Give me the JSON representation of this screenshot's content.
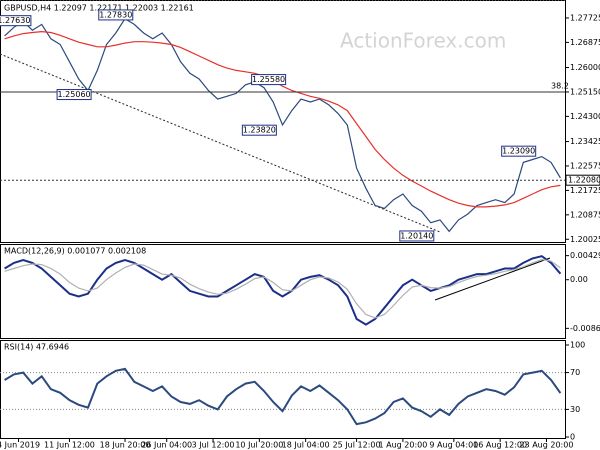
{
  "chart_data": {
    "type": "line",
    "title": "GBPUSD,H4 1.22097 1.22171 1.22003 1.22161",
    "watermark": "ActionForex.com",
    "xlim": [
      0,
      61
    ],
    "xticks": [
      {
        "value": 2,
        "label": "4 Jun 2019"
      },
      {
        "value": 7.5,
        "label": "11 Jun 12:00"
      },
      {
        "value": 13.5,
        "label": "18 Jun 20:00"
      },
      {
        "value": 18,
        "label": "26 Jun 04:00"
      },
      {
        "value": 23,
        "label": "3 Jul 12:00"
      },
      {
        "value": 28,
        "label": "10 Jul 20:00"
      },
      {
        "value": 33,
        "label": "18 Jul 04:00"
      },
      {
        "value": 38.5,
        "label": "25 Jul 12:00"
      },
      {
        "value": 43.5,
        "label": "1 Aug 20:00"
      },
      {
        "value": 49,
        "label": "9 Aug 04:00"
      },
      {
        "value": 54,
        "label": "16 Aug 12:00"
      },
      {
        "value": 59,
        "label": "23 Aug 20:00"
      }
    ],
    "ylim": [
      1.1993,
      1.2828
    ],
    "yticks": [
      1.27725,
      1.26875,
      {
        "value": 1.26,
        "label": "1.26000"
      },
      {
        "value": 1.2515,
        "label": "1.25150"
      },
      {
        "value": 1.243,
        "label": "1.24300"
      },
      1.23425,
      1.22575,
      1.21725,
      1.20875,
      1.20025
    ],
    "series": [
      {
        "name": "GBPUSD",
        "color": "#2b4a7e",
        "values": [
          1.271,
          1.274,
          1.276,
          1.273,
          1.275,
          1.27,
          1.268,
          1.262,
          1.256,
          1.252,
          1.259,
          1.268,
          1.272,
          1.277,
          1.275,
          1.272,
          1.27,
          1.272,
          1.268,
          1.262,
          1.258,
          1.256,
          1.252,
          1.249,
          1.25,
          1.251,
          1.254,
          1.255,
          1.253,
          1.248,
          1.24,
          1.245,
          1.249,
          1.248,
          1.249,
          1.247,
          1.244,
          1.24,
          1.225,
          1.218,
          1.212,
          1.211,
          1.214,
          1.216,
          1.212,
          1.21,
          1.206,
          1.207,
          1.203,
          1.207,
          1.209,
          1.212,
          1.213,
          1.214,
          1.213,
          1.216,
          1.227,
          1.228,
          1.229,
          1.227,
          1.2216
        ]
      },
      {
        "name": "MA",
        "color": "#e8302a",
        "values": [
          1.27,
          1.271,
          1.2718,
          1.2722,
          1.2725,
          1.2722,
          1.2712,
          1.27,
          1.2688,
          1.268,
          1.2672,
          1.2672,
          1.2678,
          1.2685,
          1.269,
          1.269,
          1.2688,
          1.2685,
          1.268,
          1.267,
          1.2655,
          1.264,
          1.2625,
          1.261,
          1.2598,
          1.259,
          1.2585,
          1.258,
          1.257,
          1.2555,
          1.2535,
          1.252,
          1.251,
          1.25,
          1.2493,
          1.2483,
          1.247,
          1.245,
          1.2405,
          1.236,
          1.2315,
          1.228,
          1.225,
          1.2225,
          1.2205,
          1.2188,
          1.217,
          1.2155,
          1.214,
          1.2128,
          1.212,
          1.2115,
          1.2115,
          1.2118,
          1.2122,
          1.213,
          1.2145,
          1.216,
          1.2175,
          1.2185,
          1.219
        ]
      }
    ],
    "levels": [
      {
        "value": 1.2515,
        "label": "38.2"
      },
      {
        "value": 1.2208,
        "label": "1.22080"
      }
    ],
    "annotations": [
      {
        "x": 1.5,
        "value": 1.2763,
        "label": "1.27630"
      },
      {
        "x": 12.5,
        "value": 1.2783,
        "label": "1.27830"
      },
      {
        "x": 8,
        "value": 1.2506,
        "label": "1.25060"
      },
      {
        "x": 29,
        "value": 1.2558,
        "label": "1.25580"
      },
      {
        "x": 28,
        "value": 1.2382,
        "label": "1.23820"
      },
      {
        "x": 56,
        "value": 1.2309,
        "label": "1.23090"
      },
      {
        "x": 45,
        "value": 1.2014,
        "label": "1.20140"
      }
    ],
    "macd": {
      "title": "MACD(12,26,9) 0.001077 0.002108",
      "ylim": [
        -0.0095,
        0.0053
      ],
      "yticks": [
        0.004293,
        {
          "value": 0,
          "label": "0.00"
        },
        -0.00867
      ],
      "series": [
        {
          "name": "MACD",
          "color": "#1a2f8a",
          "values": [
            0.002,
            0.003,
            0.0035,
            0.003,
            0.002,
            0.0005,
            -0.001,
            -0.0025,
            -0.003,
            -0.0025,
            0,
            0.002,
            0.003,
            0.0035,
            0.003,
            0.002,
            0.001,
            0,
            0.001,
            -0.0005,
            -0.002,
            -0.0025,
            -0.003,
            -0.003,
            -0.002,
            -0.001,
            0,
            0.001,
            0.0005,
            -0.002,
            -0.003,
            -0.002,
            0,
            0.0005,
            0.0008,
            0,
            -0.001,
            -0.003,
            -0.007,
            -0.008,
            -0.007,
            -0.005,
            -0.003,
            -0.001,
            0,
            -0.001,
            -0.002,
            -0.0015,
            -0.001,
            0,
            0.0005,
            0.001,
            0.001,
            0.0015,
            0.002,
            0.002,
            0.003,
            0.0038,
            0.0042,
            0.003,
            0.001077
          ]
        },
        {
          "name": "Signal",
          "color": "#b0b0b0",
          "values": [
            0.0015,
            0.002,
            0.0025,
            0.0028,
            0.0027,
            0.002,
            0.001,
            -0.0005,
            -0.0015,
            -0.002,
            -0.0015,
            0,
            0.0012,
            0.0022,
            0.0028,
            0.0026,
            0.0018,
            0.001,
            0.0008,
            0.0003,
            -0.0008,
            -0.0016,
            -0.0022,
            -0.0026,
            -0.0024,
            -0.0017,
            -0.0008,
            0.0002,
            0.0005,
            -0.0005,
            -0.0018,
            -0.002,
            -0.001,
            0,
            0.0005,
            0.0003,
            -0.0004,
            -0.0017,
            -0.0043,
            -0.0062,
            -0.0068,
            -0.0062,
            -0.0046,
            -0.0028,
            -0.0013,
            -0.001,
            -0.0014,
            -0.0015,
            -0.0012,
            -0.0005,
            0.0001,
            0.0006,
            0.0008,
            0.0011,
            0.0015,
            0.0018,
            0.0023,
            0.003,
            0.0036,
            0.0033,
            0.002108
          ]
        }
      ]
    },
    "rsi": {
      "title": "RSI(14) 47.6946",
      "ylim": [
        0,
        100
      ],
      "yticks": [
        100,
        70,
        30,
        0
      ],
      "levels": [
        70,
        30
      ],
      "series": [
        {
          "name": "RSI",
          "color": "#2b4a7e",
          "values": [
            62,
            68,
            70,
            58,
            66,
            52,
            48,
            40,
            35,
            32,
            58,
            66,
            72,
            74,
            60,
            55,
            50,
            55,
            44,
            38,
            36,
            40,
            34,
            30,
            44,
            52,
            58,
            60,
            50,
            38,
            28,
            45,
            55,
            50,
            56,
            48,
            40,
            30,
            14,
            16,
            20,
            26,
            38,
            42,
            32,
            28,
            22,
            30,
            24,
            36,
            44,
            48,
            52,
            50,
            46,
            54,
            68,
            70,
            72,
            62,
            47.6946
          ]
        }
      ]
    }
  }
}
